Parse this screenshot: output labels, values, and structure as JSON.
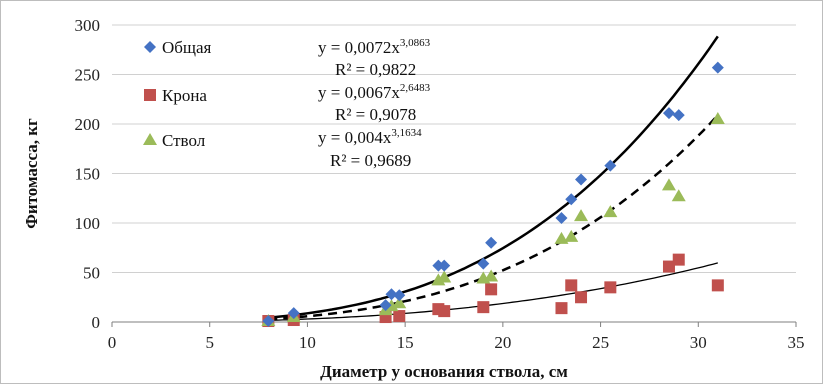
{
  "chart_data": {
    "type": "scatter",
    "xlabel": "Диаметр у основания ствола, см",
    "ylabel": "Фитомасса, кг",
    "xlim": [
      0,
      35
    ],
    "ylim": [
      0,
      300
    ],
    "x_ticks": [
      "0",
      "5",
      "10",
      "15",
      "20",
      "25",
      "30",
      "35"
    ],
    "y_ticks": [
      "0",
      "50",
      "100",
      "150",
      "200",
      "250",
      "300"
    ],
    "grid": "horizontal",
    "legend_position": "top-left",
    "series": [
      {
        "name": "Общая",
        "marker": "diamond",
        "color": "#4472C4",
        "points": [
          [
            8,
            1
          ],
          [
            9.3,
            9
          ],
          [
            14,
            17
          ],
          [
            14.3,
            28
          ],
          [
            14.7,
            27
          ],
          [
            16.7,
            57
          ],
          [
            17,
            57
          ],
          [
            19,
            59
          ],
          [
            19.4,
            80
          ],
          [
            23,
            105
          ],
          [
            23.5,
            124
          ],
          [
            24,
            144
          ],
          [
            25.5,
            158
          ],
          [
            28.5,
            211
          ],
          [
            29,
            209
          ],
          [
            31,
            257
          ]
        ]
      },
      {
        "name": "Крона",
        "marker": "square",
        "color": "#C0504D",
        "points": [
          [
            8,
            1
          ],
          [
            9.3,
            2
          ],
          [
            14,
            5
          ],
          [
            14.7,
            6
          ],
          [
            16.7,
            13
          ],
          [
            17,
            11
          ],
          [
            19,
            15
          ],
          [
            19.4,
            33
          ],
          [
            23,
            14
          ],
          [
            23.5,
            37
          ],
          [
            24,
            25
          ],
          [
            25.5,
            35
          ],
          [
            28.5,
            56
          ],
          [
            29,
            63
          ],
          [
            31,
            37
          ]
        ]
      },
      {
        "name": "Ствол",
        "marker": "triangle",
        "color": "#9BBB59",
        "points": [
          [
            8,
            1
          ],
          [
            9.3,
            5
          ],
          [
            14,
            12
          ],
          [
            14.3,
            16
          ],
          [
            14.7,
            19
          ],
          [
            16.7,
            42
          ],
          [
            17,
            45
          ],
          [
            19,
            44
          ],
          [
            19.4,
            46
          ],
          [
            23,
            84
          ],
          [
            23.5,
            86
          ],
          [
            24,
            107
          ],
          [
            25.5,
            111
          ],
          [
            28.5,
            138
          ],
          [
            29,
            127
          ],
          [
            31,
            205
          ]
        ]
      }
    ],
    "trendlines": [
      {
        "series": "Общая",
        "style": "solid-thick",
        "a": 0.0072,
        "b": 3.0863,
        "eq_main": "y = 0,0072x",
        "eq_exp": "3,0863",
        "r2": "R² = 0,9822"
      },
      {
        "series": "Крона",
        "style": "solid-thin",
        "a": 0.0067,
        "b": 2.6483,
        "eq_main": "y = 0,0067x",
        "eq_exp": "2,6483",
        "r2": "R² = 0,9078"
      },
      {
        "series": "Ствол",
        "style": "dashed",
        "a": 0.004,
        "b": 3.1634,
        "eq_main": "y = 0,004x",
        "eq_exp": "3,1634",
        "r2": "R² = 0,9689"
      }
    ]
  }
}
